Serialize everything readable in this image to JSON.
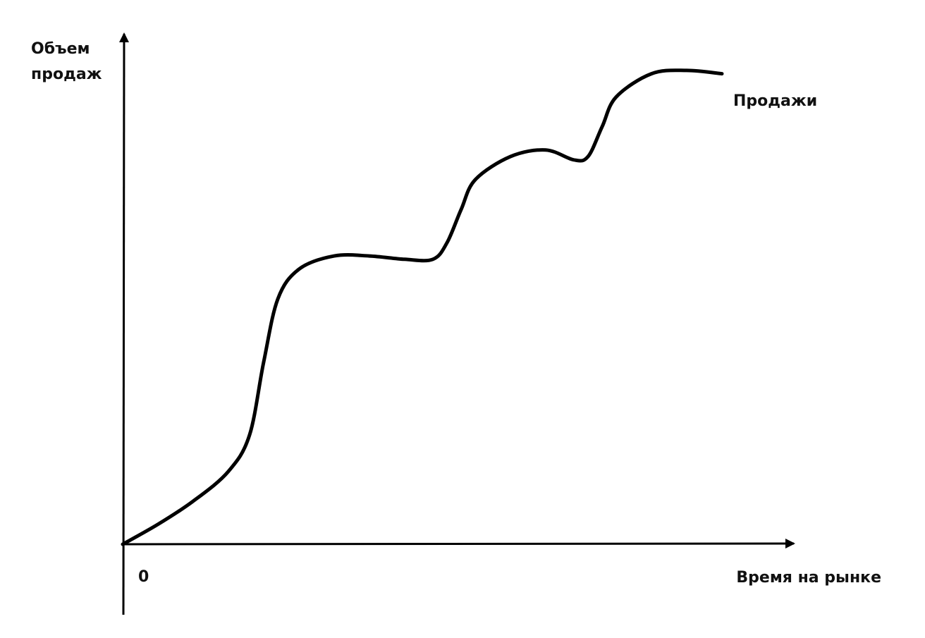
{
  "chart_data": {
    "type": "line",
    "title": "",
    "xlabel": "Время на рынке",
    "ylabel_lines": [
      "Объем",
      "продаж"
    ],
    "origin_label": "0",
    "x_ticks": [],
    "y_ticks": [],
    "grid": false,
    "legend": "none",
    "series": [
      {
        "name": "Продажи",
        "color": "#000000",
        "x": [
          0,
          5,
          10,
          15,
          18,
          20,
          22,
          25,
          30,
          35,
          40,
          44,
          46,
          48,
          50,
          55,
          60,
          64,
          66,
          68,
          70,
          75,
          80,
          85
        ],
        "y": [
          0,
          6,
          13,
          22,
          33,
          55,
          74,
          83,
          87,
          87,
          86,
          86,
          91,
          101,
          110,
          117,
          119,
          116,
          117,
          126,
          135,
          142,
          143,
          142
        ]
      }
    ]
  }
}
